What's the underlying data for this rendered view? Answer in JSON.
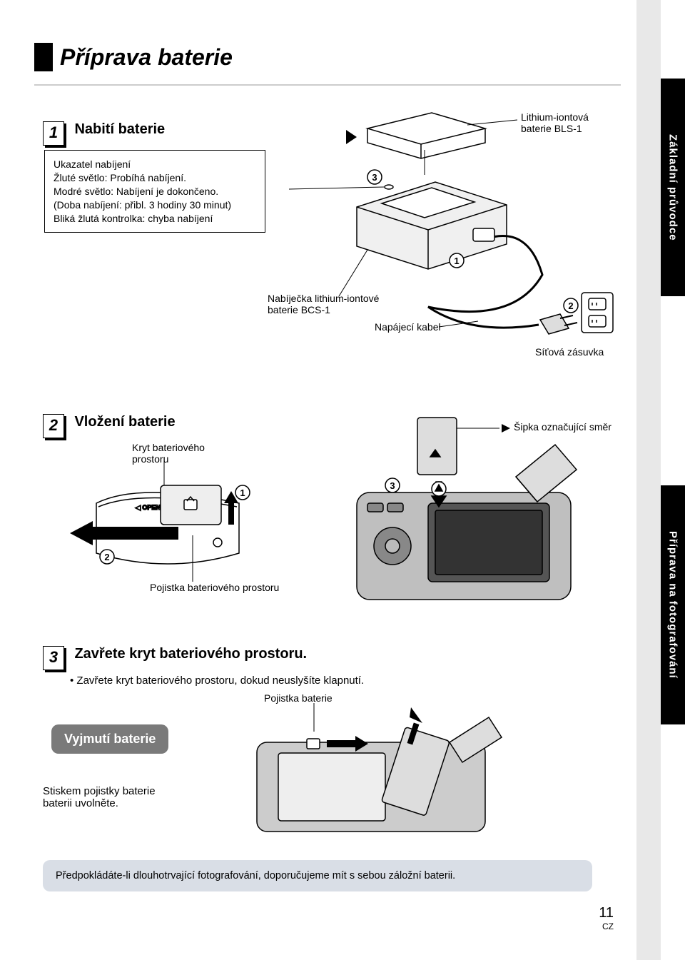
{
  "sidebar": {
    "top": "Základní průvodce",
    "bottom": "Příprava na fotografování"
  },
  "title": "Příprava baterie",
  "step1": {
    "title": "Nabití baterie",
    "info": "Ukazatel nabíjení\nŽluté světlo: Probíhá nabíjení.\nModré světlo: Nabíjení je dokončeno.\n(Doba nabíjení: přibl. 3 hodiny 30 minut)\nBliká žlutá kontrolka: chyba nabíjení",
    "battery_label": "Lithium-iontová baterie BLS-1",
    "charger_label": "Nabíječka lithium-iontové baterie BCS-1",
    "cable_label": "Napájecí kabel",
    "socket_label": "Síťová zásuvka"
  },
  "step2": {
    "title": "Vložení baterie",
    "cover_label": "Kryt bateriového prostoru",
    "lock_label": "Pojistka bateriového prostoru",
    "arrow_label": "Šipka označující směr"
  },
  "step3": {
    "title": "Zavřete kryt bateriového prostoru.",
    "bullet": "Zavřete kryt bateriového prostoru, dokud neuslyšíte klapnutí."
  },
  "remove": {
    "callout": "Vyjmutí baterie",
    "lock_label": "Pojistka baterie",
    "text": "Stiskem pojistky baterie baterii uvolněte."
  },
  "tip": "Předpokládáte-li dlouhotrvající fotografování, doporučujeme mít s sebou záložní baterii.",
  "page": {
    "num": "11",
    "lang": "CZ"
  },
  "circles": {
    "c1": "1",
    "c2": "2",
    "c3": "3"
  }
}
